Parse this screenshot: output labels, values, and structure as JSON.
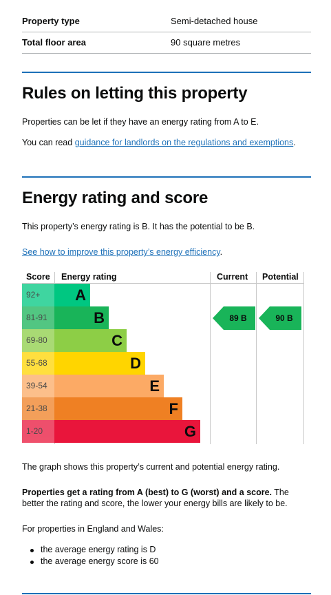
{
  "summary": [
    {
      "label": "Property type",
      "value": "Semi-detached house"
    },
    {
      "label": "Total floor area",
      "value": "90 square metres"
    }
  ],
  "rules": {
    "heading": "Rules on letting this property",
    "text1": "Properties can be let if they have an energy rating from A to E.",
    "text2_prefix": "You can read ",
    "text2_link": "guidance for landlords on the regulations and exemptions",
    "text2_suffix": "."
  },
  "energy": {
    "heading": "Energy rating and score",
    "text1": "This property’s energy rating is B. It has the potential to be B.",
    "link": "See how to improve this property’s energy efficiency",
    "link_suffix": "."
  },
  "chart_data": {
    "type": "table",
    "headers": {
      "score": "Score",
      "rating": "Energy rating",
      "current": "Current",
      "potential": "Potential"
    },
    "bands": [
      {
        "letter": "A",
        "range": "92+",
        "color": "#00c781"
      },
      {
        "letter": "B",
        "range": "81-91",
        "color": "#19b459"
      },
      {
        "letter": "C",
        "range": "69-80",
        "color": "#8dce46"
      },
      {
        "letter": "D",
        "range": "55-68",
        "color": "#ffd500"
      },
      {
        "letter": "E",
        "range": "39-54",
        "color": "#fcaa65"
      },
      {
        "letter": "F",
        "range": "21-38",
        "color": "#ef8023"
      },
      {
        "letter": "G",
        "range": "1-20",
        "color": "#e9153b"
      }
    ],
    "current": {
      "score": 89,
      "rating": "B",
      "label": "89 B"
    },
    "potential": {
      "score": 90,
      "rating": "B",
      "label": "90 B"
    }
  },
  "after_chart": {
    "graph_text": "The graph shows this property’s current and potential energy rating.",
    "bold_text": "Properties get a rating from A (best) to G (worst) and a score.",
    "rest_text": " The better the rating and score, the lower your energy bills are likely to be.",
    "region_text": "For properties in England and Wales:",
    "bullets": [
      "the average energy rating is D",
      "the average energy score is 60"
    ]
  }
}
